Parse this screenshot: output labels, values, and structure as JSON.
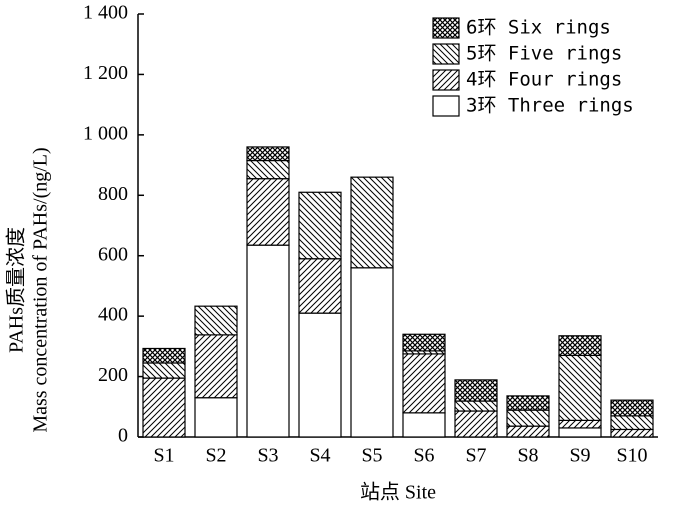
{
  "chart_data": {
    "type": "stacked_bar",
    "y_label": [
      "PAHs质量浓度",
      "Mass concentration of PAHs/(ng/L)"
    ],
    "x_label": "站点 Site",
    "categories": [
      "S1",
      "S2",
      "S3",
      "S4",
      "S5",
      "S6",
      "S7",
      "S8",
      "S9",
      "S10"
    ],
    "series": [
      {
        "name": "6环 Six rings",
        "color": "#000000",
        "pattern": "crosshatch",
        "values": [
          48,
          0,
          45,
          0,
          0,
          55,
          70,
          47,
          65,
          52
        ]
      },
      {
        "name": "5环 Five rings",
        "color": "#000000",
        "pattern": "backslash",
        "values": [
          50,
          95,
          60,
          220,
          300,
          10,
          33,
          53,
          215,
          45
        ]
      },
      {
        "name": "4环 Four rings",
        "color": "#000000",
        "pattern": "slash",
        "values": [
          195,
          208,
          220,
          180,
          0,
          195,
          86,
          36,
          25,
          25
        ]
      },
      {
        "name": "3环 Three rings",
        "color": "#000000",
        "pattern": "none",
        "values": [
          0,
          130,
          635,
          410,
          560,
          80,
          0,
          0,
          30,
          0
        ]
      }
    ],
    "ylim": [
      0,
      1400
    ],
    "yticks": [
      0,
      200,
      400,
      600,
      800,
      {
        "value": 1000,
        "label": "1 000"
      },
      {
        "value": 1200,
        "label": "1 200"
      },
      {
        "value": 1400,
        "label": "1 400"
      }
    ],
    "legend": "top-right"
  }
}
